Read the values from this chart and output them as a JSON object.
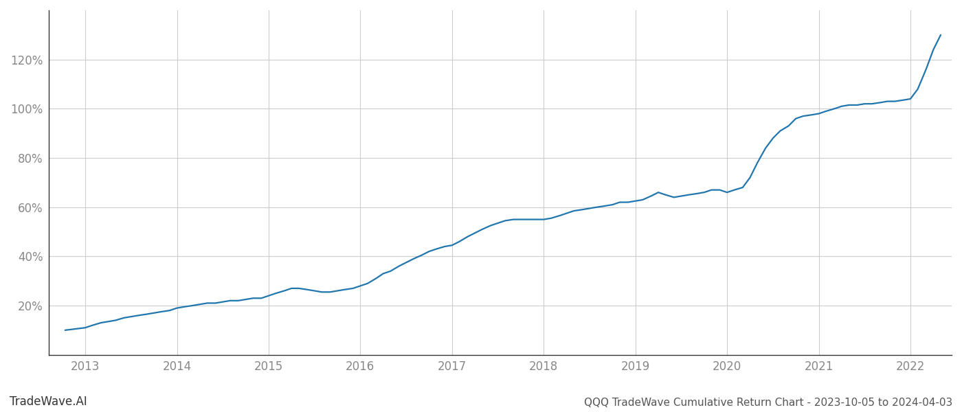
{
  "title": "QQQ TradeWave Cumulative Return Chart - 2023-10-05 to 2024-04-03",
  "watermark": "TradeWave.AI",
  "line_color": "#2176ae",
  "background_color": "#ffffff",
  "grid_color": "#cccccc",
  "x_years": [
    2013,
    2014,
    2015,
    2016,
    2017,
    2018,
    2019,
    2020,
    2021,
    2022
  ],
  "data_x": [
    2012.78,
    2013.0,
    2013.08,
    2013.17,
    2013.25,
    2013.33,
    2013.42,
    2013.5,
    2013.58,
    2013.67,
    2013.75,
    2013.83,
    2013.92,
    2014.0,
    2014.08,
    2014.17,
    2014.25,
    2014.33,
    2014.42,
    2014.5,
    2014.58,
    2014.67,
    2014.75,
    2014.83,
    2014.92,
    2015.0,
    2015.08,
    2015.17,
    2015.25,
    2015.33,
    2015.42,
    2015.5,
    2015.58,
    2015.67,
    2015.75,
    2015.83,
    2015.92,
    2016.0,
    2016.08,
    2016.17,
    2016.25,
    2016.33,
    2016.42,
    2016.5,
    2016.58,
    2016.67,
    2016.75,
    2016.83,
    2016.92,
    2017.0,
    2017.08,
    2017.17,
    2017.25,
    2017.33,
    2017.42,
    2017.5,
    2017.58,
    2017.67,
    2017.75,
    2017.83,
    2017.92,
    2018.0,
    2018.08,
    2018.17,
    2018.25,
    2018.33,
    2018.42,
    2018.5,
    2018.58,
    2018.67,
    2018.75,
    2018.83,
    2018.92,
    2019.0,
    2019.08,
    2019.17,
    2019.25,
    2019.33,
    2019.42,
    2019.5,
    2019.58,
    2019.67,
    2019.75,
    2019.83,
    2019.92,
    2020.0,
    2020.08,
    2020.17,
    2020.25,
    2020.33,
    2020.42,
    2020.5,
    2020.58,
    2020.67,
    2020.75,
    2020.83,
    2020.92,
    2021.0,
    2021.08,
    2021.17,
    2021.25,
    2021.33,
    2021.42,
    2021.5,
    2021.58,
    2021.67,
    2021.75,
    2021.83,
    2021.92,
    2022.0,
    2022.08,
    2022.17,
    2022.25,
    2022.33
  ],
  "data_y": [
    10,
    11,
    12,
    13,
    13.5,
    14,
    15,
    15.5,
    16,
    16.5,
    17,
    17.5,
    18,
    19,
    19.5,
    20,
    20.5,
    21,
    21,
    21.5,
    22,
    22,
    22.5,
    23,
    23,
    24,
    25,
    26,
    27,
    27,
    26.5,
    26,
    25.5,
    25.5,
    26,
    26.5,
    27,
    28,
    29,
    31,
    33,
    34,
    36,
    37.5,
    39,
    40.5,
    42,
    43,
    44,
    44.5,
    46,
    48,
    49.5,
    51,
    52.5,
    53.5,
    54.5,
    55,
    55,
    55,
    55,
    55,
    55.5,
    56.5,
    57.5,
    58.5,
    59,
    59.5,
    60,
    60.5,
    61,
    62,
    62,
    62.5,
    63,
    64.5,
    66,
    65,
    64,
    64.5,
    65,
    65.5,
    66,
    67,
    67,
    66,
    67,
    68,
    72,
    78,
    84,
    88,
    91,
    93,
    96,
    97,
    97.5,
    98,
    99,
    100,
    101,
    101.5,
    101.5,
    102,
    102,
    102.5,
    103,
    103,
    103.5,
    104,
    108,
    116,
    124,
    130
  ],
  "yticks": [
    20,
    40,
    60,
    80,
    100,
    120
  ],
  "ylim": [
    0,
    140
  ],
  "xlim": [
    2012.6,
    2022.45
  ],
  "title_fontsize": 11,
  "watermark_fontsize": 12,
  "tick_fontsize": 12,
  "tick_color": "#888888",
  "left_spine_color": "#333333",
  "bottom_spine_color": "#333333",
  "line_width": 1.6
}
